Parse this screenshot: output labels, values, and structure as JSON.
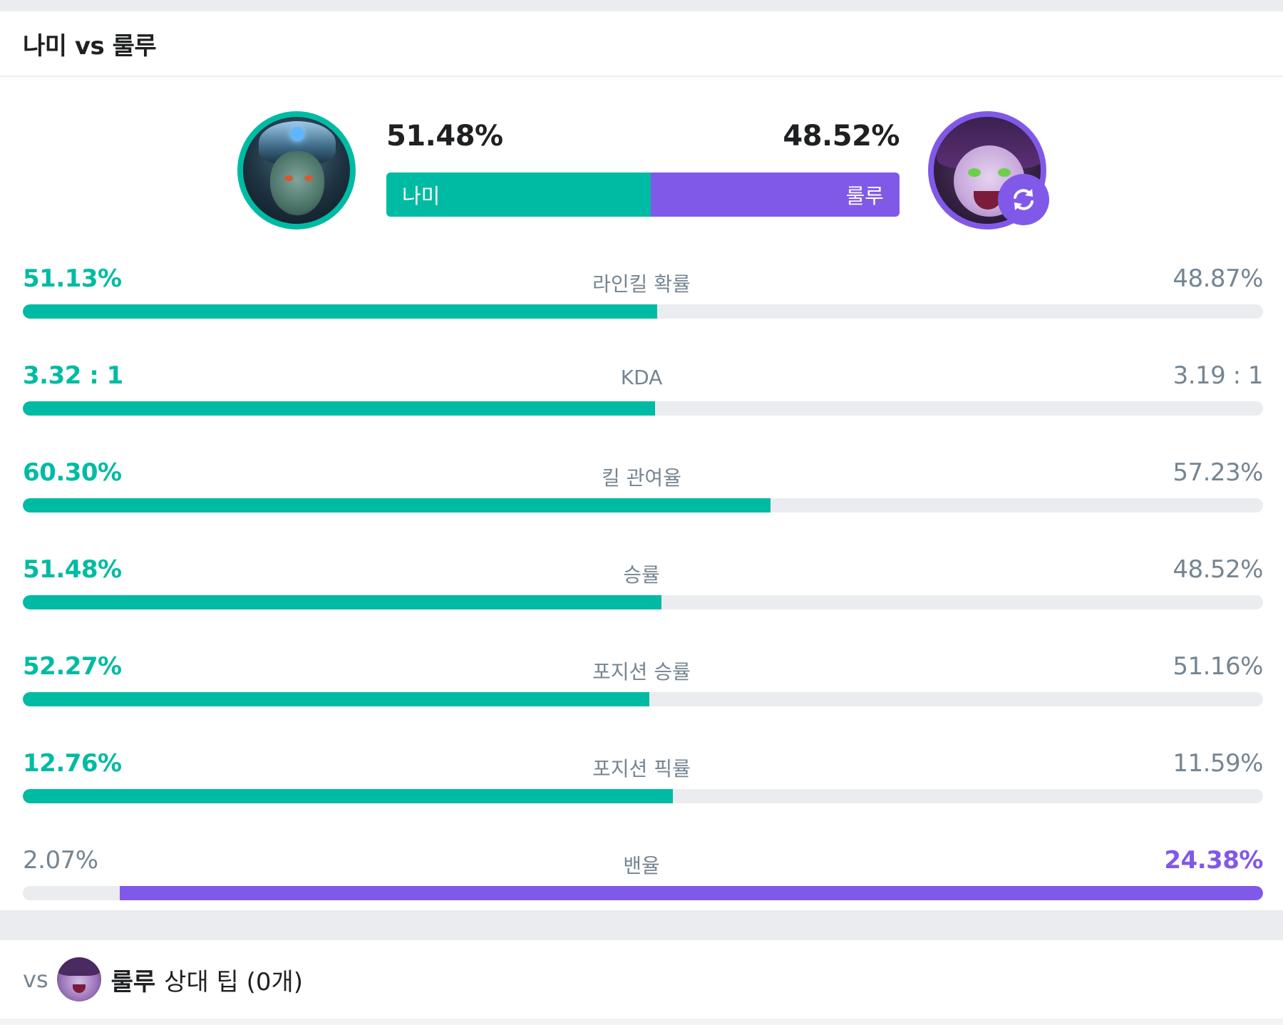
{
  "header": {
    "title": "나미 vs 룰루"
  },
  "matchup": {
    "left_champion": "나미",
    "right_champion": "룰루",
    "left_winrate": "51.48%",
    "right_winrate": "48.52%",
    "left_share": 0.5148
  },
  "stats": [
    {
      "label": "라인킬 확률",
      "left": "51.13%",
      "right": "48.87%",
      "left_fill": 0.5113,
      "right_fill": 0,
      "winner": "left"
    },
    {
      "label": "KDA",
      "left": "3.32 : 1",
      "right": "3.19 : 1",
      "left_fill": 0.51,
      "right_fill": 0,
      "winner": "left"
    },
    {
      "label": "킬 관여율",
      "left": "60.30%",
      "right": "57.23%",
      "left_fill": 0.603,
      "right_fill": 0,
      "winner": "left"
    },
    {
      "label": "승률",
      "left": "51.48%",
      "right": "48.52%",
      "left_fill": 0.5148,
      "right_fill": 0,
      "winner": "left"
    },
    {
      "label": "포지션 승률",
      "left": "52.27%",
      "right": "51.16%",
      "left_fill": 0.505,
      "right_fill": 0,
      "winner": "left"
    },
    {
      "label": "포지션 픽률",
      "left": "12.76%",
      "right": "11.59%",
      "left_fill": 0.524,
      "right_fill": 0,
      "winner": "left"
    },
    {
      "label": "밴율",
      "left": "2.07%",
      "right": "24.38%",
      "left_fill": 0,
      "right_fill": 0.922,
      "winner": "right"
    }
  ],
  "tips": {
    "vs_label": "vs",
    "champion": "룰루",
    "label": "상대 팁 (0개)"
  },
  "colors": {
    "left_accent": "#00bba3",
    "right_accent": "#8159e8",
    "track": "#ebecef",
    "muted_text": "#758592"
  },
  "icons": {
    "swap": "swap-refresh-icon"
  }
}
